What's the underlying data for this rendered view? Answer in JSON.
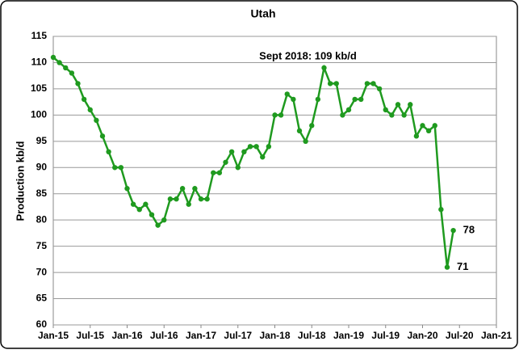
{
  "chart_data": {
    "type": "line",
    "title": "Utah",
    "y_label": "Production kb/d",
    "categories": [
      "Jan-15",
      null,
      null,
      null,
      null,
      null,
      "Jul-15",
      null,
      null,
      null,
      null,
      null,
      "Jan-16",
      null,
      null,
      null,
      null,
      null,
      "Jul-16",
      null,
      null,
      null,
      null,
      null,
      "Jan-17",
      null,
      null,
      null,
      null,
      null,
      "Jul-17",
      null,
      null,
      null,
      null,
      null,
      "Jan-18",
      null,
      null,
      null,
      null,
      null,
      "Jul-18",
      null,
      null,
      null,
      null,
      null,
      "Jan-19",
      null,
      null,
      null,
      null,
      null,
      "Jul-19",
      null,
      null,
      null,
      null,
      null,
      "Jan-20",
      null,
      null,
      null,
      null,
      null,
      "Jul-20",
      null,
      null,
      null,
      null,
      null,
      "Jan-21"
    ],
    "series": [
      {
        "name": "Utah",
        "color": "#1f9a1f",
        "values": [
          111,
          110,
          109,
          108,
          106,
          103,
          101,
          99,
          96,
          93,
          90,
          90,
          86,
          83,
          82,
          83,
          81,
          79,
          80,
          84,
          84,
          86,
          83,
          86,
          84,
          84,
          89,
          89,
          91,
          93,
          90,
          93,
          94,
          94,
          92,
          94,
          100,
          100,
          104,
          103,
          97,
          95,
          98,
          103,
          109,
          106,
          106,
          100,
          101,
          103,
          103,
          106,
          106,
          105,
          101,
          100,
          102,
          100,
          102,
          96,
          98,
          97,
          98,
          82,
          71,
          78,
          null,
          null,
          null,
          null,
          null,
          null,
          null
        ]
      }
    ],
    "ylim": [
      60,
      115
    ],
    "yticks": [
      60,
      65,
      70,
      75,
      80,
      85,
      90,
      95,
      100,
      105,
      110,
      115
    ],
    "grid": true,
    "annotations": [
      {
        "text": "Sept 2018: 109 kb/d",
        "index": 44
      },
      {
        "text": "78",
        "index": 65
      },
      {
        "text": "71",
        "index": 64
      }
    ]
  }
}
